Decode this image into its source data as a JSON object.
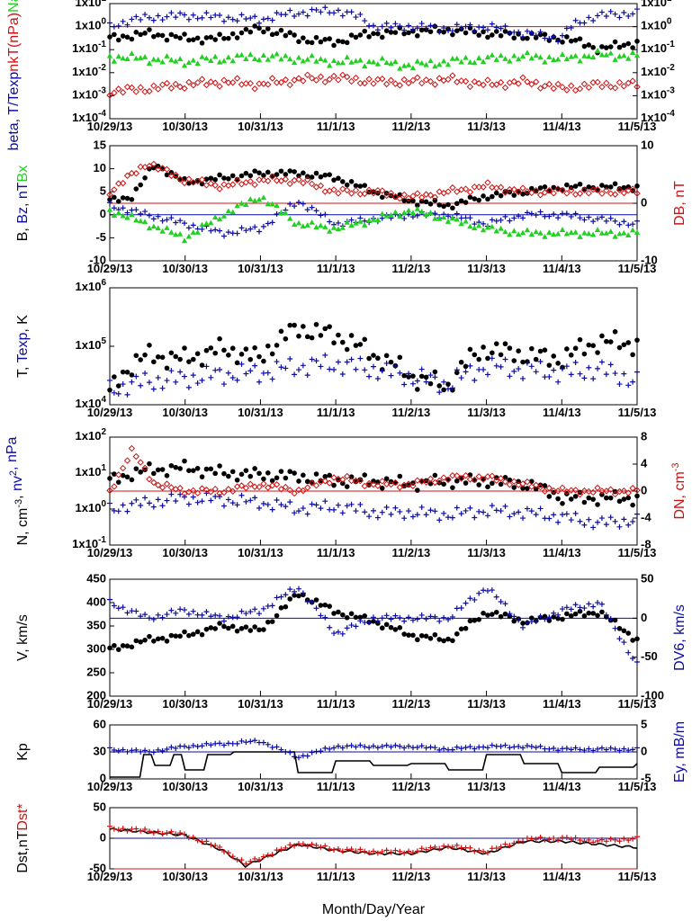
{
  "colors": {
    "black": "#000000",
    "blue": "#0b0ba8",
    "red": "#d01010",
    "green": "#22d022"
  },
  "x_ticks": [
    "10/29/13",
    "10/30/13",
    "10/31/13",
    "11/1/13",
    "11/2/13",
    "11/3/13",
    "11/4/13",
    "11/5/13"
  ],
  "x_title": "Month/Day/Year",
  "chart_data": [
    {
      "type": "scatter",
      "panel": "beta",
      "y_scale": "log",
      "ylim": [
        0.0001,
        10
      ],
      "y_ticks_left": [
        "1x10-4",
        "1x10-3",
        "1x10-2",
        "1x10-1",
        "1x100",
        "1x101"
      ],
      "y_ticks_right": [
        "1x10-4",
        "1x10-3",
        "1x10-2",
        "1x10-1",
        "1x100",
        "1x101"
      ],
      "ylabel_parts": [
        {
          "text": "beta, ",
          "color": "#0b0ba8"
        },
        {
          "text": "T/Texp",
          "color": "#0b0ba8"
        },
        {
          "text": "nkT(nPa)",
          "color": "#d01010"
        },
        {
          "text": "Na/Np",
          "color": "#22d022"
        }
      ],
      "reference_line": {
        "y": 1,
        "color": "#d01010"
      },
      "series": [
        {
          "marker": "dot",
          "color": "#000000",
          "x": [
            0.0,
            0.5,
            1.0,
            1.5,
            2.0,
            2.5,
            3.0,
            3.5,
            4.0,
            4.5,
            5.0,
            5.5,
            6.0,
            6.5,
            7.0
          ],
          "values": [
            0.3,
            0.5,
            0.3,
            0.3,
            0.8,
            0.3,
            0.2,
            0.5,
            0.6,
            0.7,
            0.5,
            0.4,
            0.3,
            0.1,
            0.2
          ]
        },
        {
          "marker": "plus",
          "color": "#0b0ba8",
          "x": [
            0.0,
            0.5,
            1.0,
            1.5,
            2.0,
            2.5,
            3.0,
            3.5,
            4.0,
            4.5,
            5.0,
            5.5,
            6.0,
            6.5,
            7.0
          ],
          "values": [
            1.0,
            2.5,
            3.0,
            2.5,
            2.0,
            4.0,
            5.0,
            1.0,
            1.0,
            0.8,
            1.0,
            0.5,
            0.3,
            3.0,
            4.0
          ]
        },
        {
          "marker": "triangle",
          "color": "#22d022",
          "x": [
            0.0,
            0.5,
            1.0,
            1.5,
            2.0,
            2.5,
            3.0,
            3.5,
            4.0,
            4.5,
            5.0,
            5.5,
            6.0,
            6.5,
            7.0
          ],
          "values": [
            0.05,
            0.04,
            0.03,
            0.04,
            0.05,
            0.04,
            0.03,
            0.03,
            0.02,
            0.03,
            0.04,
            0.05,
            0.04,
            0.06,
            0.05
          ]
        },
        {
          "marker": "diamond",
          "color": "#d01010",
          "x": [
            0.0,
            0.5,
            1.0,
            1.5,
            2.0,
            2.5,
            3.0,
            3.5,
            4.0,
            4.5,
            5.0,
            5.5,
            6.0,
            6.5,
            7.0
          ],
          "values": [
            0.0015,
            0.002,
            0.003,
            0.004,
            0.003,
            0.005,
            0.006,
            0.004,
            0.004,
            0.005,
            0.003,
            0.004,
            0.002,
            0.003,
            0.003
          ]
        }
      ]
    },
    {
      "type": "scatter",
      "panel": "B",
      "y_scale": "linear",
      "ylim": [
        -10,
        15
      ],
      "y_ticks_left": [
        "-10",
        "-5",
        "0",
        "5",
        "10",
        "15"
      ],
      "ylim_right": [
        -10,
        10
      ],
      "y_ticks_right": [
        "-10",
        "0",
        "10"
      ],
      "ylabel_parts": [
        {
          "text": "B, ",
          "color": "#000000"
        },
        {
          "text": "Bz, nT",
          "color": "#0b0ba8"
        },
        {
          "text": "Bx",
          "color": "#22d022"
        }
      ],
      "ylabel_right_parts": [
        {
          "text": "DB, nT",
          "color": "#d01010"
        }
      ],
      "reference_lines": [
        {
          "y": 0,
          "color": "#0b0ba8"
        },
        {
          "y": 2.5,
          "color": "#d01010"
        }
      ],
      "series": [
        {
          "marker": "dot",
          "color": "#000000",
          "x": [
            0.0,
            0.3,
            0.6,
            1.0,
            1.5,
            2.0,
            2.5,
            3.0,
            3.5,
            4.0,
            4.5,
            5.0,
            5.5,
            6.0,
            6.5,
            7.0
          ],
          "values": [
            3,
            4,
            11,
            7,
            8,
            9,
            9,
            8,
            5,
            3,
            2,
            4,
            5,
            6,
            6,
            6
          ]
        },
        {
          "marker": "plus",
          "color": "#0b0ba8",
          "x": [
            0.0,
            0.5,
            1.0,
            1.5,
            2.0,
            2.5,
            3.0,
            3.5,
            4.0,
            4.5,
            5.0,
            5.5,
            6.0,
            6.5,
            7.0
          ],
          "values": [
            2,
            0,
            -2,
            -4,
            -3,
            3,
            -2,
            -1,
            0,
            0,
            -2,
            0,
            0,
            -1,
            -2
          ]
        },
        {
          "marker": "triangle",
          "color": "#22d022",
          "x": [
            0.0,
            0.5,
            1.0,
            1.5,
            2.0,
            2.5,
            3.0,
            3.5,
            4.0,
            4.5,
            5.0,
            5.5,
            6.0,
            6.5,
            7.0
          ],
          "values": [
            1,
            -2,
            -5,
            0,
            4,
            -2,
            -3,
            -1,
            1,
            -1,
            -3,
            -4,
            -4,
            -4,
            -4
          ]
        },
        {
          "marker": "diamond",
          "color": "#d01010",
          "x": [
            0.0,
            0.5,
            1.0,
            1.5,
            2.0,
            2.5,
            3.0,
            3.5,
            4.0,
            4.5,
            5.0,
            5.5,
            6.0,
            6.5,
            7.0
          ],
          "values": [
            2,
            7,
            4,
            3,
            4,
            4,
            2,
            2,
            1,
            2,
            3,
            2,
            2,
            2,
            2
          ],
          "axis": "right"
        }
      ]
    },
    {
      "type": "scatter",
      "panel": "T",
      "y_scale": "log",
      "ylim": [
        10000,
        1000000
      ],
      "y_ticks_left": [
        "1x104",
        "1x105",
        "1x106"
      ],
      "ylabel_parts": [
        {
          "text": "T, ",
          "color": "#000000"
        },
        {
          "text": "Texp",
          "color": "#0b0ba8"
        },
        {
          "text": ", K",
          "color": "#000000"
        }
      ],
      "series": [
        {
          "marker": "dot",
          "color": "#000000",
          "x": [
            0.0,
            0.5,
            1.0,
            1.5,
            2.0,
            2.5,
            3.0,
            3.5,
            4.0,
            4.5,
            5.0,
            5.5,
            6.0,
            6.5,
            7.0
          ],
          "values": [
            15000,
            70000,
            60000,
            90000,
            60000,
            200000,
            150000,
            70000,
            30000,
            20000,
            90000,
            70000,
            60000,
            120000,
            110000
          ]
        },
        {
          "marker": "plus",
          "color": "#0b0ba8",
          "x": [
            0.0,
            0.5,
            1.0,
            1.5,
            2.0,
            2.5,
            3.0,
            3.5,
            4.0,
            4.5,
            5.0,
            5.5,
            6.0,
            6.5,
            7.0
          ],
          "values": [
            18000,
            25000,
            28000,
            33000,
            35000,
            45000,
            50000,
            40000,
            30000,
            22000,
            45000,
            40000,
            35000,
            40000,
            25000
          ]
        }
      ]
    },
    {
      "type": "scatter",
      "panel": "N",
      "y_scale": "log",
      "ylim": [
        0.1,
        100
      ],
      "y_ticks_left": [
        "1x10-1",
        "1x100",
        "1x101",
        "1x102"
      ],
      "ylim_right": [
        -8,
        8
      ],
      "y_ticks_right": [
        "-8",
        "-4",
        "0",
        "4",
        "8"
      ],
      "ylabel_parts": [
        {
          "text": "N, cm",
          "color": "#000000"
        },
        {
          "text": "-3",
          "color": "#000000",
          "sup": true
        },
        {
          "text": ", ",
          "color": "#000000"
        },
        {
          "text": "nv",
          "color": "#0b0ba8"
        },
        {
          "text": "2",
          "color": "#0b0ba8",
          "sup": true
        },
        {
          "text": ", nPa",
          "color": "#0b0ba8"
        }
      ],
      "ylabel_right_parts": [
        {
          "text": "DN, cm",
          "color": "#d01010"
        },
        {
          "text": "-3",
          "color": "#d01010",
          "sup": true
        }
      ],
      "reference_line": {
        "y": 0,
        "color": "#d01010",
        "axis": "right"
      },
      "series": [
        {
          "marker": "dot",
          "color": "#000000",
          "x": [
            0.0,
            0.5,
            1.0,
            1.5,
            2.0,
            2.5,
            3.0,
            3.5,
            4.0,
            4.5,
            5.0,
            5.5,
            6.0,
            6.5,
            7.0
          ],
          "values": [
            6,
            12,
            14,
            10,
            9,
            8,
            6,
            6,
            5,
            6,
            6,
            5,
            2,
            2,
            2
          ]
        },
        {
          "marker": "plus",
          "color": "#0b0ba8",
          "x": [
            0.0,
            0.5,
            1.0,
            1.5,
            2.0,
            2.5,
            3.0,
            3.5,
            4.0,
            4.5,
            5.0,
            5.5,
            6.0,
            6.5,
            7.0
          ],
          "values": [
            1.0,
            1.5,
            2.0,
            1.8,
            1.5,
            1.0,
            1.2,
            0.8,
            0.8,
            0.7,
            0.9,
            0.8,
            0.6,
            0.4,
            0.5
          ]
        },
        {
          "marker": "diamond",
          "color": "#d01010",
          "x": [
            0.0,
            0.3,
            0.6,
            1.0,
            1.5,
            2.0,
            2.5,
            3.0,
            3.5,
            4.0,
            4.5,
            5.0,
            5.5,
            6.0,
            6.5,
            7.0
          ],
          "values": [
            0,
            6,
            1,
            0,
            0,
            1,
            0,
            2,
            1,
            1,
            2,
            2,
            1,
            0,
            0,
            0
          ],
          "axis": "right"
        }
      ]
    },
    {
      "type": "scatter",
      "panel": "V",
      "y_scale": "linear",
      "ylim": [
        200,
        450
      ],
      "y_ticks_left": [
        "200",
        "250",
        "300",
        "350",
        "400",
        "450"
      ],
      "ylim_right": [
        -100,
        50
      ],
      "y_ticks_right": [
        "-100",
        "-50",
        "0",
        "50"
      ],
      "ylabel_parts": [
        {
          "text": "V, km/s",
          "color": "#000000"
        }
      ],
      "ylabel_right_parts": [
        {
          "text": "DV6, km/s",
          "color": "#0b0ba8"
        }
      ],
      "reference_line": {
        "y": 0,
        "color": "#0b0ba8",
        "axis": "right"
      },
      "series": [
        {
          "marker": "dot",
          "color": "#000000",
          "x": [
            0.0,
            0.5,
            1.0,
            1.5,
            2.0,
            2.5,
            3.0,
            3.5,
            4.0,
            4.5,
            5.0,
            5.5,
            6.0,
            6.5,
            7.0
          ],
          "values": [
            300,
            320,
            330,
            350,
            340,
            420,
            380,
            360,
            330,
            320,
            380,
            360,
            370,
            380,
            320
          ]
        },
        {
          "marker": "plus",
          "color": "#0b0ba8",
          "x": [
            0.0,
            0.5,
            1.0,
            1.5,
            2.0,
            2.5,
            3.0,
            3.5,
            4.0,
            4.5,
            5.0,
            5.5,
            6.0,
            6.5,
            7.0
          ],
          "values": [
            20,
            0,
            10,
            0,
            10,
            40,
            -20,
            0,
            0,
            0,
            40,
            -10,
            10,
            20,
            -60
          ],
          "axis": "right"
        }
      ]
    },
    {
      "type": "line",
      "panel": "Kp",
      "y_scale": "linear",
      "ylim": [
        0,
        60
      ],
      "y_ticks_left": [
        "0",
        "30",
        "60"
      ],
      "ylim_right": [
        -5,
        5
      ],
      "y_ticks_right": [
        "-5",
        "0",
        "5"
      ],
      "ylabel_parts": [
        {
          "text": "Kp",
          "color": "#000000"
        }
      ],
      "ylabel_right_parts": [
        {
          "text": "Ey, mB/m",
          "color": "#0b0ba8"
        }
      ],
      "reference_line": {
        "y": 0,
        "color": "#0b0ba8",
        "axis": "right"
      },
      "series": [
        {
          "marker": "line",
          "color": "#000000",
          "x": [
            0.0,
            0.3,
            0.4,
            0.6,
            0.8,
            1.0,
            1.3,
            1.6,
            2.0,
            2.5,
            3.0,
            3.5,
            4.0,
            4.5,
            5.0,
            5.5,
            6.0,
            6.5,
            7.0
          ],
          "values": [
            0,
            0,
            27,
            15,
            27,
            10,
            27,
            30,
            30,
            7,
            20,
            15,
            17,
            10,
            27,
            17,
            7,
            13,
            17
          ]
        },
        {
          "marker": "plus",
          "color": "#0b0ba8",
          "x": [
            0.0,
            0.5,
            1.0,
            1.5,
            2.0,
            2.5,
            3.0,
            3.5,
            4.0,
            4.5,
            5.0,
            5.5,
            6.0,
            6.5,
            7.0
          ],
          "values": [
            0.5,
            0,
            1,
            1.5,
            2,
            -1,
            1,
            1,
            1,
            0.5,
            1,
            1,
            0.5,
            0.5,
            0.5
          ],
          "axis": "right"
        }
      ]
    },
    {
      "type": "line",
      "panel": "Dst",
      "y_scale": "linear",
      "ylim": [
        -50,
        50
      ],
      "y_ticks_left": [
        "-50",
        "0",
        "50"
      ],
      "ylabel_parts": [
        {
          "text": "Dst,nT",
          "color": "#000000"
        },
        {
          "text": "Dst*",
          "color": "#d01010"
        }
      ],
      "reference_lines": [
        {
          "y": 0,
          "color": "#0b0ba8"
        },
        {
          "y": -50,
          "color": "#d01010"
        }
      ],
      "series": [
        {
          "marker": "line",
          "color": "#000000",
          "x": [
            0.0,
            0.5,
            1.0,
            1.5,
            1.8,
            2.0,
            2.5,
            3.0,
            3.5,
            4.0,
            4.5,
            5.0,
            5.5,
            6.0,
            6.5,
            7.0
          ],
          "values": [
            15,
            10,
            5,
            -20,
            -45,
            -35,
            -10,
            -20,
            -25,
            -25,
            -15,
            -25,
            -5,
            -5,
            -10,
            -15
          ]
        },
        {
          "marker": "plus",
          "color": "#d01010",
          "x": [
            0.0,
            0.5,
            1.0,
            1.5,
            1.8,
            2.0,
            2.5,
            3.0,
            3.5,
            4.0,
            4.5,
            5.0,
            5.5,
            6.0,
            6.5,
            7.0
          ],
          "values": [
            17,
            12,
            6,
            -18,
            -42,
            -32,
            -8,
            -18,
            -22,
            -22,
            -12,
            -22,
            -2,
            0,
            -5,
            0
          ]
        }
      ]
    }
  ]
}
